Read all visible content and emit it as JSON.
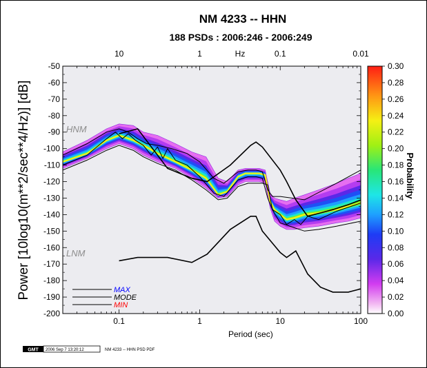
{
  "chart_data": {
    "type": "heatmap",
    "title": "NM 4233 -- HHN",
    "subtitle": "188 PSDs : 2006:246 - 2006:249",
    "xlabel": "Period (sec)",
    "ylabel": "Power [10log10(m**2/sec**4/Hz)] [dB]",
    "top_axis_label": "Hz",
    "colorbar_label": "Probability",
    "x_scale": "log",
    "xlim": [
      0.02,
      100
    ],
    "ylim": [
      -200,
      -50
    ],
    "x_ticks": [
      {
        "value": 0.1,
        "label": "0.1"
      },
      {
        "value": 1,
        "label": "1"
      },
      {
        "value": 10,
        "label": "10"
      },
      {
        "value": 100,
        "label": "100"
      }
    ],
    "top_ticks": [
      {
        "value": 0.1,
        "label": "10"
      },
      {
        "value": 1,
        "label": "1"
      },
      {
        "value": 10,
        "label": "0.1"
      },
      {
        "value": 100,
        "label": "0.01"
      }
    ],
    "y_ticks": [
      -50,
      -60,
      -70,
      -80,
      -90,
      -100,
      -110,
      -120,
      -130,
      -140,
      -150,
      -160,
      -170,
      -180,
      -190,
      -200
    ],
    "colorbar": {
      "range": [
        0,
        0.3
      ],
      "ticks": [
        "0.00",
        "0.02",
        "0.04",
        "0.06",
        "0.08",
        "0.10",
        "0.12",
        "0.14",
        "0.16",
        "0.18",
        "0.20",
        "0.22",
        "0.24",
        "0.26",
        "0.28",
        "0.30"
      ]
    },
    "density_band": {
      "period": [
        0.02,
        0.04,
        0.07,
        0.1,
        0.15,
        0.2,
        0.3,
        0.5,
        0.8,
        1.2,
        1.7,
        2.2,
        3,
        3.7,
        4.5,
        5.5,
        6.5,
        7.5,
        8.5,
        10,
        12,
        15,
        20,
        30,
        50,
        70,
        100
      ],
      "upper": [
        -102,
        -95,
        -88,
        -85,
        -86,
        -90,
        -92,
        -97,
        -102,
        -105,
        -118,
        -120,
        -113,
        -112,
        -112,
        -112,
        -113,
        -127,
        -130,
        -131,
        -132,
        -130,
        -128,
        -125,
        -121,
        -118,
        -115
      ],
      "mode": [
        -108,
        -103,
        -95,
        -92,
        -95,
        -98,
        -103,
        -108,
        -113,
        -118,
        -128,
        -126,
        -117,
        -115,
        -115,
        -115,
        -116,
        -132,
        -137,
        -140,
        -143,
        -142,
        -140,
        -139,
        -137,
        -135,
        -133
      ],
      "lower": [
        -112,
        -106,
        -100,
        -97,
        -100,
        -104,
        -108,
        -112,
        -118,
        -124,
        -130,
        -129,
        -122,
        -120,
        -120,
        -120,
        -121,
        -136,
        -144,
        -147,
        -149,
        -149,
        -148,
        -147,
        -145,
        -144,
        -142
      ]
    },
    "series": [
      {
        "name": "MAX",
        "color": "#0000ff",
        "x": [
          0.02,
          0.04,
          0.07,
          0.1,
          0.13,
          0.17,
          0.22,
          0.3,
          0.45,
          0.7,
          1,
          1.5,
          2,
          3,
          4,
          5,
          6,
          7,
          8,
          10,
          20,
          50,
          100
        ],
        "y": [
          -104,
          -97,
          -90,
          -88,
          -90,
          -94,
          -97,
          -98,
          -100,
          -103,
          -108,
          -118,
          -121,
          -114,
          -113,
          -113,
          -114,
          -125,
          -129,
          -129,
          -131,
          -121,
          -113
        ]
      },
      {
        "name": "MODE",
        "color": "#000000",
        "x": [
          0.02,
          0.04,
          0.07,
          0.09,
          0.11,
          0.13,
          0.16,
          0.2,
          0.25,
          0.3,
          0.35,
          0.4,
          0.5,
          0.7,
          1,
          1.5,
          2,
          3,
          4,
          5,
          6,
          7,
          8,
          10,
          12,
          15,
          18,
          22,
          30,
          50,
          100
        ],
        "y": [
          -110,
          -104,
          -94,
          -90,
          -94,
          -91,
          -95,
          -98,
          -104,
          -99,
          -106,
          -100,
          -107,
          -110,
          -117,
          -127,
          -129,
          -119,
          -117,
          -117,
          -118,
          -130,
          -137,
          -140,
          -146,
          -143,
          -146,
          -141,
          -143,
          -138,
          -133
        ]
      },
      {
        "name": "MIN",
        "color": "#ff0000",
        "x": [
          0.02,
          0.04,
          0.07,
          0.1,
          0.15,
          0.2,
          0.3,
          0.5,
          0.8,
          1.2,
          1.7,
          2.2,
          3,
          4,
          5,
          6,
          7,
          8,
          10,
          15,
          20,
          30,
          50,
          100
        ],
        "y": [
          -113,
          -107,
          -101,
          -98,
          -101,
          -105,
          -109,
          -113,
          -119,
          -125,
          -131,
          -130,
          -123,
          -121,
          -121,
          -121,
          -122,
          -137,
          -145,
          -148,
          -150,
          -149,
          -147,
          -144
        ]
      }
    ],
    "models": [
      {
        "name": "HNM",
        "x": [
          0.1,
          0.17,
          0.4,
          0.8,
          1.24,
          2.4,
          4.3,
          5,
          6,
          10,
          12,
          15.6,
          21.9,
          31.6,
          45,
          70,
          101
        ],
        "y": [
          -91,
          -88,
          -112,
          -118,
          -120,
          -110,
          -98,
          -96,
          -99,
          -113,
          -120,
          -131,
          -141,
          -139,
          -137,
          -134,
          -131
        ]
      },
      {
        "name": "LNM",
        "x": [
          0.1,
          0.17,
          0.4,
          0.8,
          1.24,
          2.4,
          4.3,
          5,
          6,
          10,
          12,
          15.6,
          21.9,
          31.6,
          45,
          70,
          101
        ],
        "y": [
          -168,
          -166,
          -166,
          -169,
          -164,
          -149,
          -141,
          -141,
          -150,
          -163,
          -166,
          -162,
          -176,
          -184,
          -187,
          -187,
          -185
        ]
      }
    ],
    "legend": {
      "placement": "bottom-left",
      "entries": [
        "MAX",
        "MODE",
        "MIN"
      ]
    }
  },
  "footer": {
    "logo": "GMT",
    "timestamp": "2006 Sep 7 13:20:12",
    "caption": "NM 4233 -- HHN PSD PDF"
  }
}
